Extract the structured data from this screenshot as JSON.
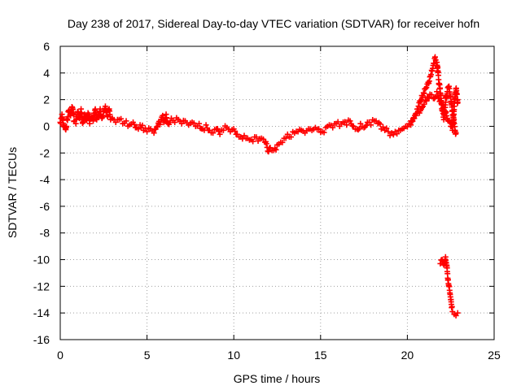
{
  "chart_data": {
    "type": "scatter",
    "title": "Day 238 of 2017, Sidereal Day-to-day VTEC variation (SDTVAR) for receiver hofn",
    "xlabel": "GPS time / hours",
    "ylabel": "SDTVAR / TECUs",
    "xlim": [
      0,
      25
    ],
    "ylim": [
      -16,
      6
    ],
    "xticks": [
      0,
      5,
      10,
      15,
      20,
      25
    ],
    "yticks": [
      6,
      4,
      2,
      0,
      -2,
      -4,
      -6,
      -8,
      -10,
      -12,
      -14,
      -16
    ],
    "grid": true,
    "marker": "+",
    "series_color": "#ff0000",
    "series": [
      {
        "name": "SDTVAR",
        "points": [
          [
            0.0,
            0.3
          ],
          [
            0.1,
            0.9
          ],
          [
            0.2,
            0.1
          ],
          [
            0.3,
            -0.2
          ],
          [
            0.4,
            0.5
          ],
          [
            0.5,
            1.2
          ],
          [
            0.6,
            0.8
          ],
          [
            0.7,
            1.4
          ],
          [
            0.8,
            0.4
          ],
          [
            0.9,
            0.2
          ],
          [
            1.0,
            1.1
          ],
          [
            1.1,
            0.6
          ],
          [
            1.2,
            1.3
          ],
          [
            1.3,
            0.3
          ],
          [
            1.4,
            0.9
          ],
          [
            1.5,
            0.5
          ],
          [
            1.6,
            1.0
          ],
          [
            1.7,
            0.2
          ],
          [
            1.8,
            0.7
          ],
          [
            1.9,
            0.4
          ],
          [
            2.0,
            1.2
          ],
          [
            2.1,
            0.5
          ],
          [
            2.2,
            0.9
          ],
          [
            2.3,
            1.3
          ],
          [
            2.4,
            0.6
          ],
          [
            2.5,
            1.1
          ],
          [
            2.6,
            1.5
          ],
          [
            2.7,
            0.8
          ],
          [
            2.8,
            1.2
          ],
          [
            2.9,
            0.5
          ],
          [
            3.0,
            0.6
          ],
          [
            3.2,
            0.3
          ],
          [
            3.4,
            0.5
          ],
          [
            3.6,
            0.2
          ],
          [
            3.8,
            0.4
          ],
          [
            4.0,
            0.1
          ],
          [
            4.2,
            0.3
          ],
          [
            4.4,
            -0.1
          ],
          [
            4.6,
            0.1
          ],
          [
            4.8,
            -0.3
          ],
          [
            5.0,
            -0.4
          ],
          [
            5.2,
            -0.2
          ],
          [
            5.4,
            -0.5
          ],
          [
            5.6,
            0.0
          ],
          [
            5.8,
            0.5
          ],
          [
            5.9,
            0.8
          ],
          [
            6.0,
            0.4
          ],
          [
            6.1,
            0.9
          ],
          [
            6.2,
            0.2
          ],
          [
            6.4,
            0.6
          ],
          [
            6.6,
            0.3
          ],
          [
            6.8,
            0.5
          ],
          [
            7.0,
            0.2
          ],
          [
            7.2,
            0.4
          ],
          [
            7.4,
            0.1
          ],
          [
            7.6,
            0.3
          ],
          [
            7.8,
            0.0
          ],
          [
            8.0,
            0.2
          ],
          [
            8.2,
            -0.2
          ],
          [
            8.4,
            0.1
          ],
          [
            8.6,
            -0.3
          ],
          [
            8.8,
            -0.5
          ],
          [
            9.0,
            -0.2
          ],
          [
            9.2,
            -0.6
          ],
          [
            9.4,
            -0.3
          ],
          [
            9.6,
            -0.1
          ],
          [
            9.8,
            -0.4
          ],
          [
            10.0,
            -0.2
          ],
          [
            10.2,
            -0.6
          ],
          [
            10.4,
            -0.8
          ],
          [
            10.6,
            -0.7
          ],
          [
            10.8,
            -0.9
          ],
          [
            11.0,
            -1.0
          ],
          [
            11.2,
            -0.8
          ],
          [
            11.4,
            -1.1
          ],
          [
            11.6,
            -0.9
          ],
          [
            11.8,
            -1.2
          ],
          [
            12.0,
            -1.9
          ],
          [
            12.1,
            -1.6
          ],
          [
            12.3,
            -1.8
          ],
          [
            12.5,
            -1.4
          ],
          [
            12.7,
            -1.2
          ],
          [
            12.9,
            -0.9
          ],
          [
            13.1,
            -0.6
          ],
          [
            13.3,
            -0.8
          ],
          [
            13.5,
            -0.5
          ],
          [
            13.7,
            -0.4
          ],
          [
            13.9,
            -0.3
          ],
          [
            14.1,
            -0.5
          ],
          [
            14.3,
            -0.2
          ],
          [
            14.5,
            -0.3
          ],
          [
            14.7,
            -0.1
          ],
          [
            14.9,
            -0.2
          ],
          [
            15.1,
            -0.4
          ],
          [
            15.3,
            -0.1
          ],
          [
            15.5,
            0.1
          ],
          [
            15.7,
            -0.1
          ],
          [
            15.9,
            0.2
          ],
          [
            16.1,
            0.0
          ],
          [
            16.3,
            0.3
          ],
          [
            16.5,
            0.1
          ],
          [
            16.7,
            0.4
          ],
          [
            16.9,
            0.0
          ],
          [
            17.1,
            -0.2
          ],
          [
            17.3,
            0.2
          ],
          [
            17.5,
            -0.1
          ],
          [
            17.7,
            0.3
          ],
          [
            17.9,
            0.1
          ],
          [
            18.1,
            0.4
          ],
          [
            18.3,
            0.2
          ],
          [
            18.5,
            -0.2
          ],
          [
            18.7,
            -0.3
          ],
          [
            18.9,
            -0.4
          ],
          [
            19.1,
            -0.5
          ],
          [
            19.3,
            -0.4
          ],
          [
            19.5,
            -0.3
          ],
          [
            19.7,
            -0.2
          ],
          [
            19.9,
            0.0
          ],
          [
            20.1,
            0.2
          ],
          [
            20.3,
            0.4
          ],
          [
            20.5,
            0.8
          ],
          [
            20.6,
            1.3
          ],
          [
            20.8,
            2.0
          ],
          [
            21.0,
            2.8
          ],
          [
            21.2,
            3.3
          ],
          [
            21.4,
            4.2
          ],
          [
            21.6,
            5.2
          ],
          [
            21.7,
            4.8
          ],
          [
            21.8,
            3.5
          ],
          [
            21.9,
            2.5
          ],
          [
            22.0,
            1.2
          ],
          [
            22.1,
            0.5
          ],
          [
            22.2,
            1.8
          ],
          [
            22.3,
            2.6
          ],
          [
            22.4,
            3.0
          ],
          [
            22.5,
            2.2
          ],
          [
            22.6,
            1.2
          ],
          [
            22.7,
            0.2
          ],
          [
            22.8,
            -0.5
          ],
          [
            22.9,
            2.0
          ],
          [
            20.2,
            0.1
          ],
          [
            20.4,
            0.6
          ],
          [
            20.7,
            1.0
          ],
          [
            20.9,
            1.5
          ],
          [
            21.1,
            1.9
          ],
          [
            21.3,
            2.4
          ],
          [
            21.5,
            2.1
          ],
          [
            21.7,
            2.6
          ],
          [
            21.9,
            1.9
          ],
          [
            22.1,
            1.4
          ],
          [
            22.3,
            0.6
          ],
          [
            22.5,
            0.0
          ],
          [
            22.6,
            -0.3
          ],
          [
            22.7,
            1.5
          ],
          [
            22.8,
            2.8
          ],
          [
            22.9,
            1.8
          ],
          [
            21.9,
            -10.3
          ],
          [
            22.0,
            -10.0
          ],
          [
            22.1,
            -10.4
          ],
          [
            22.2,
            -9.8
          ],
          [
            22.3,
            -10.9
          ],
          [
            22.35,
            -11.5
          ],
          [
            22.4,
            -12.0
          ],
          [
            22.45,
            -12.5
          ],
          [
            22.5,
            -13.0
          ],
          [
            22.55,
            -13.6
          ],
          [
            22.6,
            -13.9
          ],
          [
            22.7,
            -14.1
          ],
          [
            22.8,
            -14.2
          ],
          [
            22.9,
            -14.0
          ]
        ]
      }
    ]
  }
}
